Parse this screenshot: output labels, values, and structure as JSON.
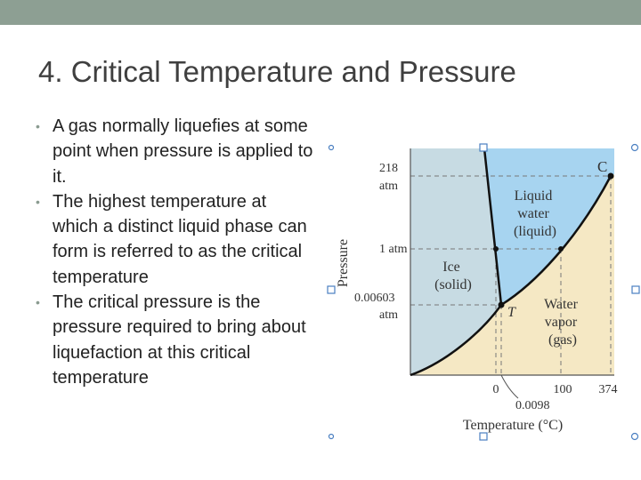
{
  "slide": {
    "title": "4. Critical Temperature and Pressure",
    "bullets": [
      "A gas normally liquefies at some point when pressure is applied to it.",
      "The highest temperature at which a distinct liquid phase can form is referred to as the critical temperature",
      "The critical pressure is the pressure required to bring about liquefaction at this critical temperature"
    ]
  },
  "diagram": {
    "y_axis_label": "Pressure",
    "x_axis_label": "Temperature (°C)",
    "y_ticks": [
      {
        "line1": "218",
        "line2": "atm"
      },
      {
        "line1": "1 atm",
        "line2": ""
      },
      {
        "line1": "0.00603",
        "line2": "atm"
      }
    ],
    "x_ticks": [
      "0",
      "100",
      "374"
    ],
    "x_tick_extra": "0.0098",
    "regions": {
      "solid": [
        "Ice",
        "(solid)"
      ],
      "liquid": [
        "Liquid",
        "water",
        "(liquid)"
      ],
      "gas": [
        "Water",
        "vapor",
        "(gas)"
      ]
    },
    "points": {
      "critical": "C",
      "triple": "T"
    },
    "colors": {
      "solid": "#c7dbe3",
      "liquid": "#a7d4f0",
      "gas": "#f5e8c4",
      "curve": "#111111"
    }
  }
}
